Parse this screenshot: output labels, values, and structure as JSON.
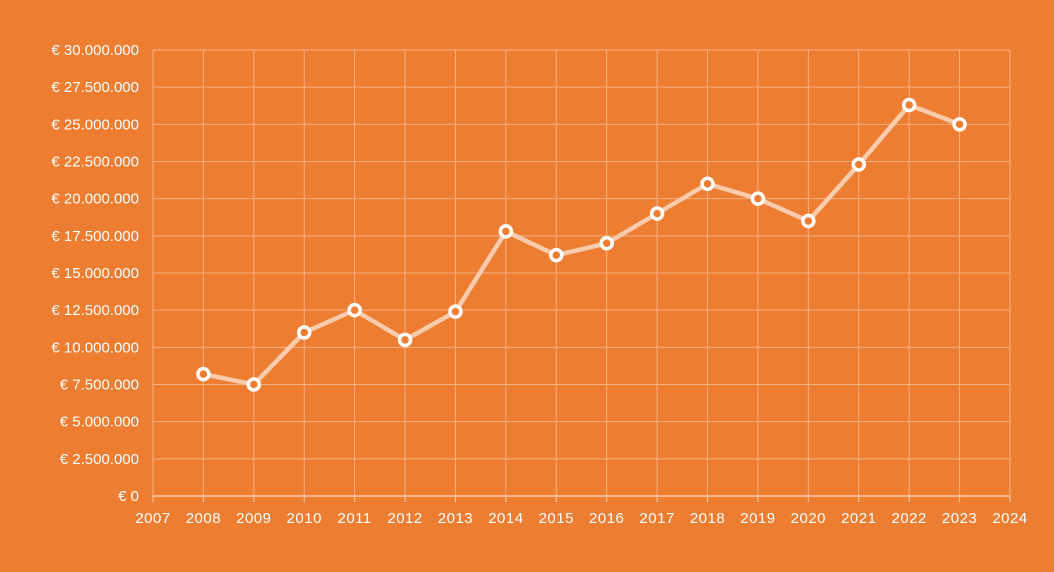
{
  "chart_data": {
    "type": "line",
    "title": "",
    "xlabel": "",
    "ylabel": "",
    "xlim": [
      2007,
      2024
    ],
    "ylim": [
      0,
      30000000
    ],
    "y_step": 2500000,
    "grid": true,
    "legend": "none",
    "x_tick_labels": [
      "2007",
      "2008",
      "2009",
      "2010",
      "2011",
      "2012",
      "2013",
      "2014",
      "2015",
      "2016",
      "2017",
      "2018",
      "2019",
      "2020",
      "2021",
      "2022",
      "2023",
      "2024"
    ],
    "y_tick_labels": [
      "€ 0",
      "€ 2.500.000",
      "€ 5.000.000",
      "€ 7.500.000",
      "€ 10.000.000",
      "€ 12.500.000",
      "€ 15.000.000",
      "€ 17.500.000",
      "€ 20.000.000",
      "€ 22.500.000",
      "€ 25.000.000",
      "€ 27.500.000",
      "€ 30.000.000"
    ],
    "series": [
      {
        "x": [
          2008,
          2009,
          2010,
          2011,
          2012,
          2013,
          2014,
          2015,
          2016,
          2017,
          2018,
          2019,
          2020,
          2021,
          2022,
          2023
        ],
        "values": [
          8200000,
          7500000,
          11000000,
          12500000,
          10500000,
          12400000,
          17800000,
          16200000,
          17000000,
          19000000,
          21000000,
          20000000,
          18500000,
          22300000,
          26300000,
          25000000
        ]
      }
    ],
    "colors": {
      "background": "#ED7D31",
      "line": "#F8CBAD",
      "marker_fill": "#ED7D31",
      "marker_stroke": "#FFFFFF",
      "grid": "#F4B183",
      "axis": "#F8CBAD",
      "text": "#FFFFFF"
    }
  }
}
